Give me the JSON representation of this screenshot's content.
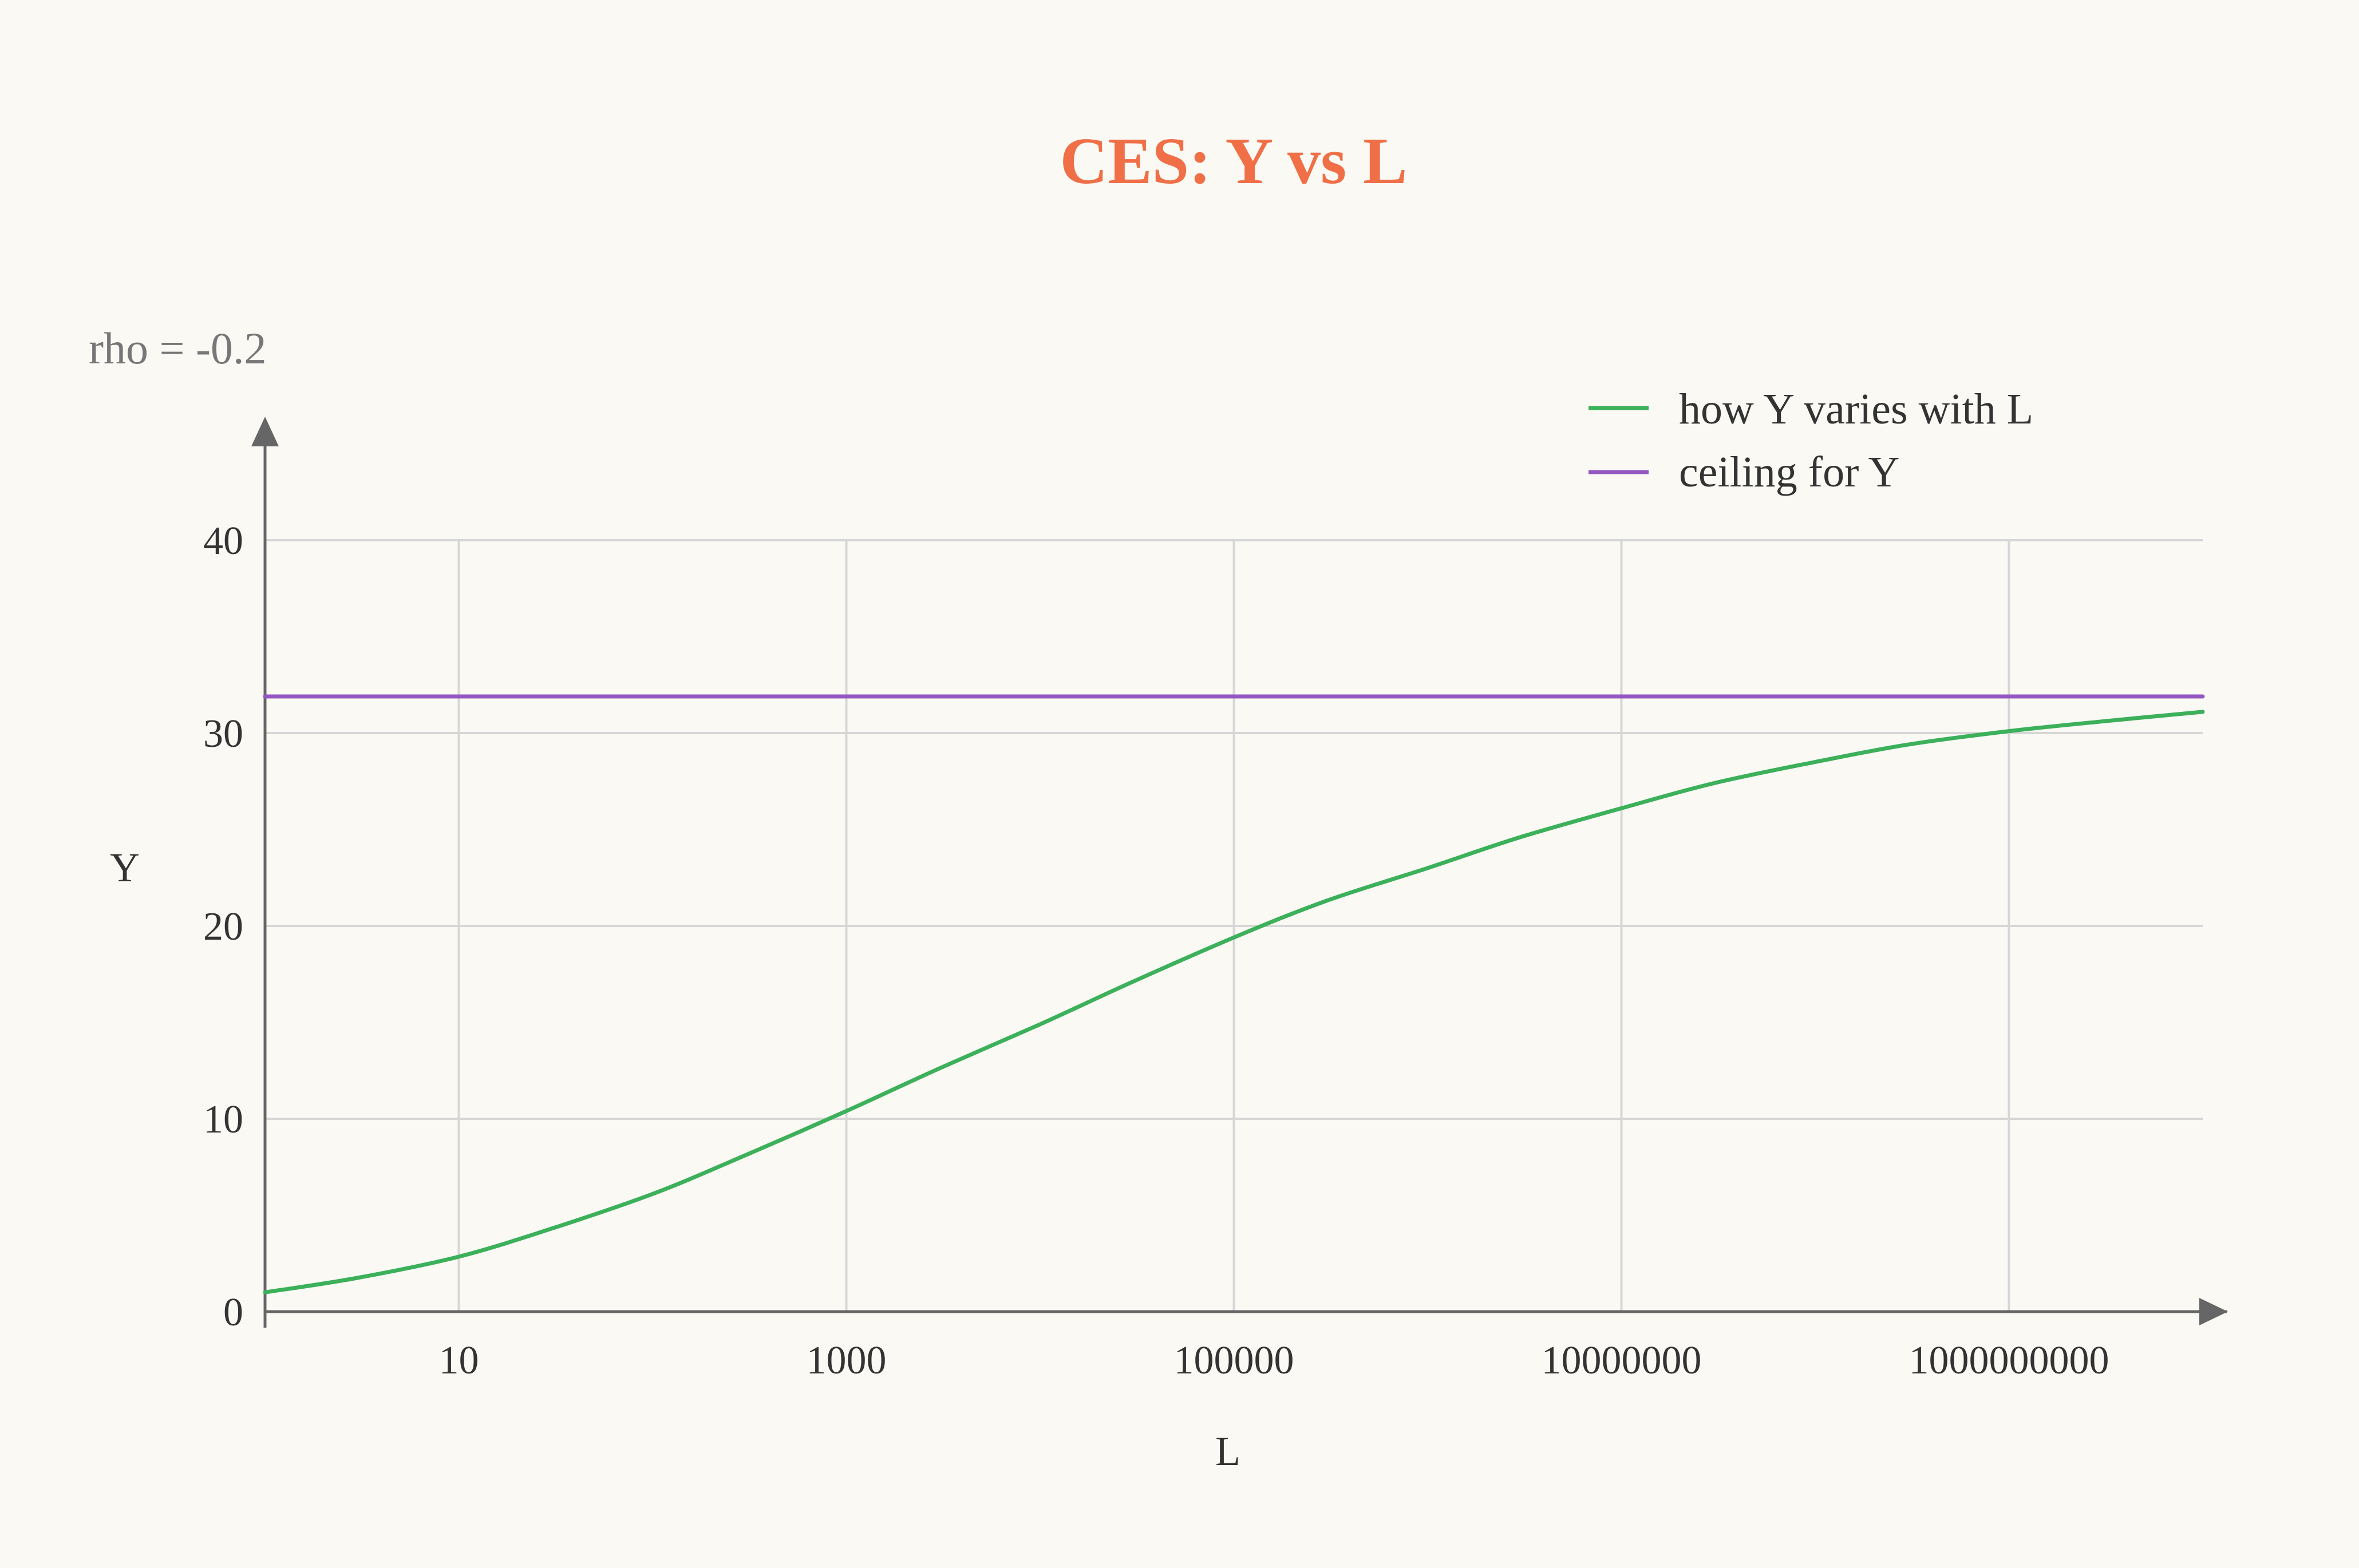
{
  "chart_data": {
    "type": "line",
    "title": "CES: Y vs L",
    "annotation": "rho = -0.2",
    "xlabel": "L",
    "ylabel": "Y",
    "x_scale": "log",
    "x_ticks": [
      10,
      1000,
      100000,
      10000000,
      1000000000
    ],
    "x_tick_labels": [
      "10",
      "1000",
      "100000",
      "10000000",
      "1000000000"
    ],
    "xlim": [
      1,
      10000000000
    ],
    "y_ticks": [
      0,
      10,
      20,
      30,
      40
    ],
    "y_tick_labels": [
      "0",
      "10",
      "20",
      "30",
      "40"
    ],
    "ylim": [
      0,
      40
    ],
    "grid": true,
    "legend_position": "top-right",
    "series": [
      {
        "name": "how Y varies with L",
        "color": "#3cb05a",
        "x": [
          1,
          3,
          10,
          30,
          100,
          300,
          1000,
          3000,
          10000,
          30000,
          100000,
          300000,
          1000000,
          3000000,
          10000000,
          30000000,
          100000000,
          300000000,
          1000000000,
          3000000000,
          10000000000
        ],
        "y": [
          1.0,
          1.75,
          2.85,
          4.3,
          6.1,
          8.1,
          10.4,
          12.6,
          14.9,
          17.1,
          19.4,
          21.3,
          23.0,
          24.6,
          26.1,
          27.4,
          28.5,
          29.4,
          30.1,
          30.6,
          31.1
        ]
      },
      {
        "name": "ceiling for Y",
        "color": "#9457c2",
        "x": [
          1,
          10000000000
        ],
        "y": [
          31.9,
          31.9
        ]
      }
    ]
  }
}
